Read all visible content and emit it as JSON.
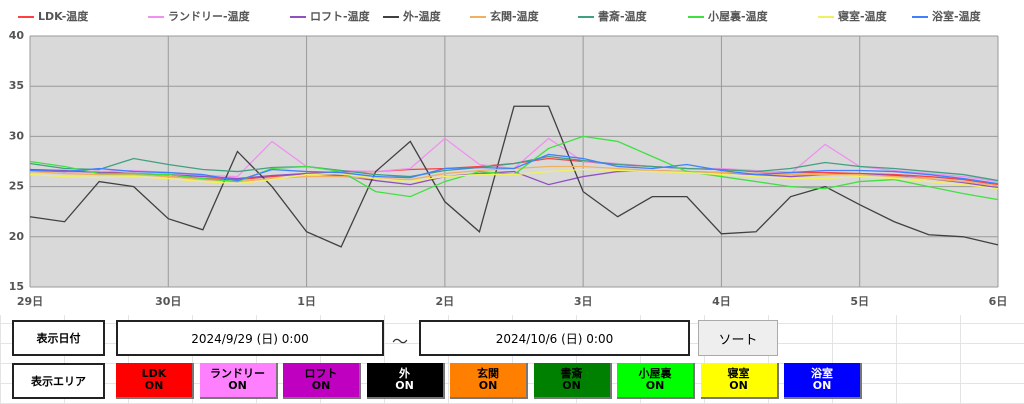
{
  "chart_data": {
    "type": "line",
    "x": [
      0,
      6,
      12,
      18,
      24,
      30,
      36,
      42,
      48,
      54,
      60,
      66,
      72,
      78,
      84,
      90,
      96,
      102,
      108,
      114,
      120,
      126,
      132,
      138,
      144,
      150,
      156,
      162,
      168
    ],
    "xlim": [
      0,
      168
    ],
    "xticks": [
      {
        "value": 0,
        "label": "29日"
      },
      {
        "value": 24,
        "label": "30日"
      },
      {
        "value": 48,
        "label": "1日"
      },
      {
        "value": 72,
        "label": "2日"
      },
      {
        "value": 96,
        "label": "3日"
      },
      {
        "value": 120,
        "label": "4日"
      },
      {
        "value": 144,
        "label": "5日"
      },
      {
        "value": 168,
        "label": "6日"
      }
    ],
    "ylim": [
      15,
      40
    ],
    "yticks": [
      15,
      20,
      25,
      30,
      35,
      40
    ],
    "grid": true,
    "legend": "top",
    "series": [
      {
        "name": "LDK-温度",
        "color": "#ff4040",
        "values": [
          26.7,
          26.5,
          26.5,
          26.3,
          26,
          25.8,
          25.7,
          26,
          26.3,
          26.5,
          26.5,
          26.7,
          26.8,
          27,
          27.3,
          27.8,
          27.5,
          27.2,
          27,
          26.8,
          26.7,
          26.5,
          26.4,
          26.4,
          26.3,
          26.2,
          26,
          25.7,
          25.2
        ]
      },
      {
        "name": "ランドリー-温度",
        "color": "#f090f0",
        "values": [
          26.7,
          26.6,
          26.5,
          26.6,
          26.4,
          26.1,
          26,
          29.5,
          27,
          26.6,
          26.5,
          26.8,
          29.8,
          27.2,
          26.8,
          29.8,
          27.5,
          27.3,
          27,
          26.8,
          26.8,
          26.6,
          26.3,
          29.2,
          27,
          26.6,
          26.3,
          26,
          25.5
        ]
      },
      {
        "name": "ロフト-温度",
        "color": "#9050c0",
        "values": [
          26.7,
          26.6,
          26.4,
          26.3,
          26.2,
          26,
          25.8,
          26.1,
          26.3,
          26.1,
          25.6,
          25.2,
          26,
          26.3,
          26.5,
          25.2,
          26,
          26.5,
          26.6,
          26.5,
          26.4,
          26.2,
          26,
          26.2,
          26.3,
          26.1,
          25.8,
          25.4,
          24.9
        ]
      },
      {
        "name": "外-温度",
        "color": "#404040",
        "values": [
          22,
          21.5,
          25.5,
          25,
          21.8,
          20.7,
          28.5,
          25,
          20.5,
          19,
          26.5,
          29.5,
          23.5,
          20.5,
          33,
          33,
          24.5,
          22,
          24,
          24,
          20.3,
          20.5,
          24,
          25,
          23.2,
          21.5,
          20.2,
          20,
          19.2
        ]
      },
      {
        "name": "玄関-温度",
        "color": "#f0b060",
        "values": [
          26.5,
          26.3,
          26.2,
          26.2,
          26,
          25.7,
          25.5,
          25.8,
          26,
          26,
          25.8,
          25.7,
          26.3,
          26.6,
          26.8,
          27,
          27,
          26.8,
          26.6,
          26.5,
          26.4,
          26.3,
          26.2,
          26.2,
          26.2,
          26,
          25.8,
          25.5,
          25.1
        ]
      },
      {
        "name": "書斎-温度",
        "color": "#40a080",
        "values": [
          27.3,
          26.8,
          26.7,
          27.8,
          27.2,
          26.7,
          26.5,
          26.9,
          27,
          26.6,
          26.2,
          26,
          26.6,
          26.9,
          27.3,
          28,
          27.6,
          27.2,
          27,
          26.8,
          26.7,
          26.5,
          26.8,
          27.4,
          27,
          26.8,
          26.5,
          26.2,
          25.6
        ]
      },
      {
        "name": "小屋裏-温度",
        "color": "#40e040",
        "values": [
          27.5,
          27,
          26.3,
          26.3,
          26.2,
          25.8,
          25.5,
          26.8,
          27,
          26.5,
          24.5,
          24,
          25.5,
          26.5,
          26.2,
          28.8,
          30,
          29.5,
          28,
          26.5,
          26,
          25.5,
          25,
          24.8,
          25.5,
          25.7,
          25,
          24.3,
          23.7
        ]
      },
      {
        "name": "寝室-温度",
        "color": "#f0f060",
        "values": [
          26.2,
          26,
          25.9,
          26,
          25.8,
          25.5,
          25.3,
          25.7,
          26.2,
          26.3,
          25.8,
          25.5,
          26,
          26.2,
          26.2,
          26.5,
          26.7,
          26.6,
          26.5,
          26.4,
          26.2,
          26,
          25.8,
          25.8,
          26,
          25.8,
          25.5,
          25.2,
          24.8
        ]
      },
      {
        "name": "浴室-温度",
        "color": "#4080ff",
        "values": [
          26.6,
          26.5,
          26.8,
          26.5,
          26.4,
          26.2,
          25.6,
          26.7,
          26.5,
          26.4,
          26,
          25.9,
          26.8,
          26.9,
          26.8,
          28.2,
          27.8,
          27,
          26.8,
          27.2,
          26.6,
          26.2,
          26.4,
          26.6,
          26.6,
          26.5,
          26.2,
          25.8,
          25.3
        ]
      }
    ]
  },
  "controls": {
    "date_label": "表示日付",
    "start": "2024/9/29 (日) 0:00",
    "tilde": "～",
    "end": "2024/10/6 (日) 0:00",
    "sort": "ソート",
    "area_label": "表示エリア",
    "areas": [
      {
        "label": "LDK",
        "state": "ON",
        "color": "#ff0000",
        "text_color": "#000000"
      },
      {
        "label": "ランドリー",
        "state": "ON",
        "color": "#ff80ff",
        "text_color": "#000000"
      },
      {
        "label": "ロフト",
        "state": "ON",
        "color": "#c000c0",
        "text_color": "#000000"
      },
      {
        "label": "外",
        "state": "ON",
        "color": "#000000",
        "text_color": "#ffffff"
      },
      {
        "label": "玄関",
        "state": "ON",
        "color": "#ff8000",
        "text_color": "#000000"
      },
      {
        "label": "書斎",
        "state": "ON",
        "color": "#008000",
        "text_color": "#000000"
      },
      {
        "label": "小屋裏",
        "state": "ON",
        "color": "#00ff00",
        "text_color": "#000000"
      },
      {
        "label": "寝室",
        "state": "ON",
        "color": "#ffff00",
        "text_color": "#000000"
      },
      {
        "label": "浴室",
        "state": "ON",
        "color": "#0000ff",
        "text_color": "#ffffff"
      }
    ]
  }
}
